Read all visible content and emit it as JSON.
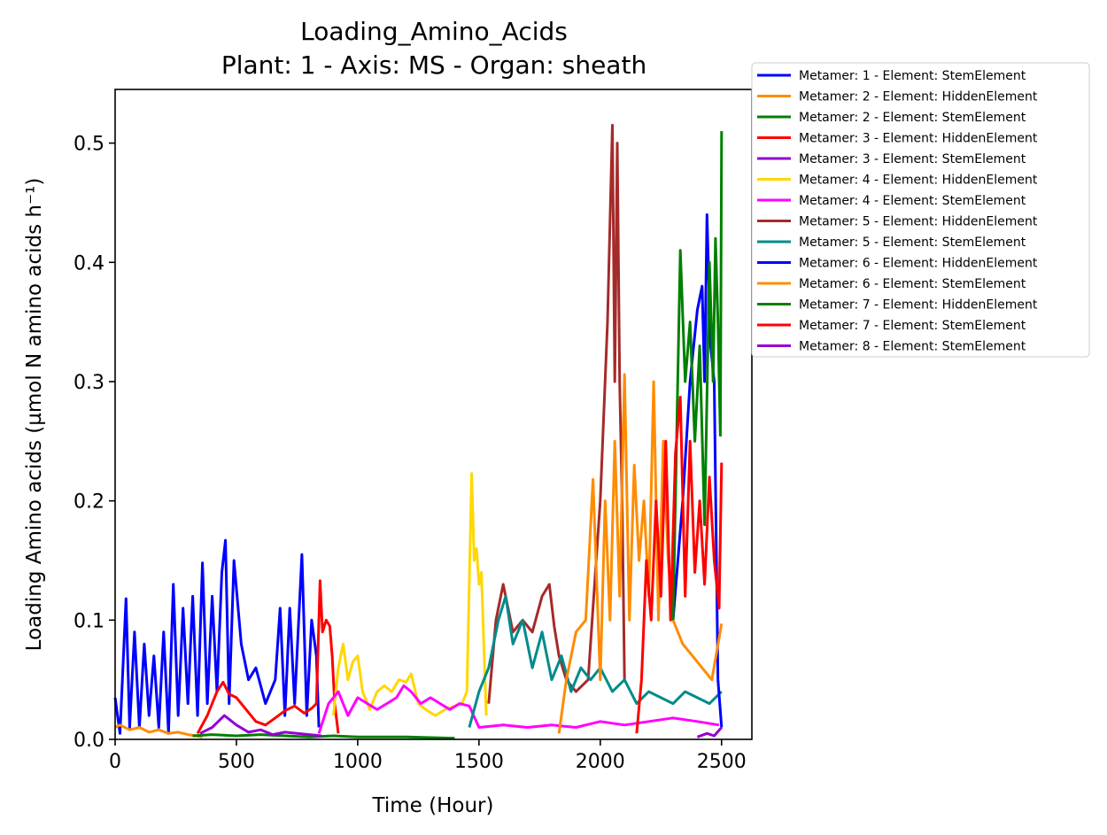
{
  "chart_data": {
    "type": "line",
    "title": "Loading_Amino_Acids",
    "subtitle": "Plant: 1 - Axis: MS - Organ: sheath",
    "xlabel": "Time (Hour)",
    "ylabel": "Loading Amino acids (µmol N amino acids h⁻¹)",
    "xlim": [
      0,
      2625
    ],
    "ylim": [
      0,
      0.545
    ],
    "xticks": [
      0,
      500,
      1000,
      1500,
      2000,
      2500
    ],
    "yticks": [
      0.0,
      0.1,
      0.2,
      0.3,
      0.4,
      0.5
    ],
    "xtick_labels": [
      "0",
      "500",
      "1000",
      "1500",
      "2000",
      "2500"
    ],
    "ytick_labels": [
      "0.0",
      "0.1",
      "0.2",
      "0.3",
      "0.4",
      "0.5"
    ],
    "grid": false,
    "legend_position": "outside-top-right",
    "series": [
      {
        "name": "Metamer: 1 - Element: StemElement",
        "color": "#0000ff",
        "x": [
          0,
          20,
          45,
          60,
          80,
          100,
          120,
          140,
          160,
          180,
          200,
          220,
          240,
          260,
          280,
          300,
          320,
          340,
          360,
          380,
          400,
          420,
          440,
          455,
          470,
          490,
          520,
          550,
          580,
          620,
          660,
          680,
          700,
          720,
          740,
          770,
          790,
          810,
          830,
          840
        ],
        "y": [
          0.035,
          0.005,
          0.118,
          0.01,
          0.09,
          0.01,
          0.08,
          0.02,
          0.07,
          0.01,
          0.09,
          0.005,
          0.13,
          0.02,
          0.11,
          0.03,
          0.12,
          0.02,
          0.148,
          0.03,
          0.12,
          0.04,
          0.14,
          0.167,
          0.03,
          0.15,
          0.08,
          0.05,
          0.06,
          0.03,
          0.05,
          0.11,
          0.02,
          0.11,
          0.03,
          0.155,
          0.02,
          0.1,
          0.07,
          0.01
        ]
      },
      {
        "name": "Metamer: 2 - Element: HiddenElement",
        "color": "#ff8c00",
        "x": [
          0,
          20,
          60,
          100,
          140,
          180,
          220,
          260,
          300,
          330,
          360
        ],
        "y": [
          0.01,
          0.012,
          0.008,
          0.01,
          0.006,
          0.008,
          0.005,
          0.006,
          0.004,
          0.003,
          0.002
        ]
      },
      {
        "name": "Metamer: 2 - Element: StemElement",
        "color": "#008000",
        "x": [
          320,
          400,
          500,
          600,
          700,
          800,
          900,
          1000,
          1200,
          1400
        ],
        "y": [
          0.003,
          0.004,
          0.003,
          0.004,
          0.003,
          0.002,
          0.003,
          0.002,
          0.002,
          0.001
        ]
      },
      {
        "name": "Metamer: 3 - Element: HiddenElement",
        "color": "#ff0000",
        "x": [
          340,
          380,
          420,
          445,
          470,
          500,
          540,
          580,
          620,
          660,
          700,
          740,
          780,
          810,
          830,
          845,
          855,
          870,
          885,
          895,
          905,
          920
        ],
        "y": [
          0.005,
          0.02,
          0.04,
          0.048,
          0.038,
          0.035,
          0.025,
          0.015,
          0.012,
          0.018,
          0.024,
          0.028,
          0.022,
          0.026,
          0.03,
          0.133,
          0.09,
          0.1,
          0.095,
          0.07,
          0.03,
          0.005
        ]
      },
      {
        "name": "Metamer: 3 - Element: StemElement",
        "color": "#9400d3",
        "x": [
          350,
          400,
          450,
          500,
          550,
          600,
          650,
          700,
          750,
          800,
          850
        ],
        "y": [
          0.005,
          0.01,
          0.02,
          0.012,
          0.006,
          0.008,
          0.004,
          0.006,
          0.005,
          0.004,
          0.003
        ]
      },
      {
        "name": "Metamer: 4 - Element: HiddenElement",
        "color": "#ffd700",
        "x": [
          900,
          920,
          940,
          960,
          980,
          1000,
          1020,
          1050,
          1080,
          1110,
          1140,
          1170,
          1200,
          1220,
          1250,
          1280,
          1320,
          1360,
          1400,
          1430,
          1450,
          1470,
          1480,
          1490,
          1500,
          1510,
          1520,
          1530
        ],
        "y": [
          0.02,
          0.06,
          0.08,
          0.05,
          0.065,
          0.07,
          0.04,
          0.025,
          0.04,
          0.045,
          0.04,
          0.05,
          0.048,
          0.055,
          0.03,
          0.025,
          0.02,
          0.025,
          0.028,
          0.03,
          0.04,
          0.223,
          0.15,
          0.16,
          0.13,
          0.14,
          0.08,
          0.02
        ]
      },
      {
        "name": "Metamer: 4 - Element: StemElement",
        "color": "#ff00ff",
        "x": [
          840,
          880,
          920,
          960,
          1000,
          1040,
          1080,
          1120,
          1160,
          1190,
          1220,
          1260,
          1300,
          1340,
          1380,
          1420,
          1460,
          1500,
          1600,
          1700,
          1800,
          1900,
          2000,
          2100,
          2200,
          2300,
          2400,
          2490
        ],
        "y": [
          0.005,
          0.03,
          0.04,
          0.02,
          0.035,
          0.03,
          0.025,
          0.03,
          0.035,
          0.045,
          0.04,
          0.03,
          0.035,
          0.03,
          0.025,
          0.03,
          0.028,
          0.01,
          0.012,
          0.01,
          0.012,
          0.01,
          0.015,
          0.012,
          0.015,
          0.018,
          0.015,
          0.012
        ]
      },
      {
        "name": "Metamer: 5 - Element: HiddenElement",
        "color": "#a52a2a",
        "x": [
          1540,
          1570,
          1600,
          1640,
          1680,
          1720,
          1760,
          1790,
          1810,
          1830,
          1860,
          1900,
          1950,
          2000,
          2030,
          2050,
          2060,
          2070,
          2080,
          2090,
          2100
        ],
        "y": [
          0.03,
          0.1,
          0.13,
          0.09,
          0.1,
          0.09,
          0.12,
          0.13,
          0.095,
          0.07,
          0.05,
          0.04,
          0.05,
          0.2,
          0.35,
          0.515,
          0.3,
          0.5,
          0.3,
          0.2,
          0.05
        ]
      },
      {
        "name": "Metamer: 5 - Element: StemElement",
        "color": "#008b8b",
        "x": [
          1460,
          1500,
          1540,
          1580,
          1610,
          1640,
          1680,
          1720,
          1760,
          1800,
          1840,
          1880,
          1920,
          1960,
          2000,
          2050,
          2100,
          2150,
          2200,
          2250,
          2300,
          2350,
          2400,
          2450,
          2500
        ],
        "y": [
          0.01,
          0.04,
          0.06,
          0.1,
          0.12,
          0.08,
          0.1,
          0.06,
          0.09,
          0.05,
          0.07,
          0.04,
          0.06,
          0.05,
          0.06,
          0.04,
          0.05,
          0.03,
          0.04,
          0.035,
          0.03,
          0.04,
          0.035,
          0.03,
          0.04
        ]
      },
      {
        "name": "Metamer: 6 - Element: HiddenElement",
        "color": "#0000ff",
        "x": [
          2300,
          2340,
          2370,
          2400,
          2420,
          2430,
          2440,
          2455,
          2470,
          2485,
          2500
        ],
        "y": [
          0.1,
          0.2,
          0.3,
          0.36,
          0.38,
          0.3,
          0.44,
          0.33,
          0.3,
          0.05,
          0.01
        ]
      },
      {
        "name": "Metamer: 6 - Element: StemElement",
        "color": "#ff8c00",
        "x": [
          1830,
          1860,
          1900,
          1940,
          1970,
          2000,
          2020,
          2040,
          2060,
          2080,
          2100,
          2120,
          2140,
          2160,
          2180,
          2200,
          2220,
          2240,
          2260,
          2280,
          2300,
          2340,
          2380,
          2420,
          2460,
          2500
        ],
        "y": [
          0.005,
          0.05,
          0.09,
          0.1,
          0.218,
          0.05,
          0.2,
          0.1,
          0.25,
          0.12,
          0.306,
          0.1,
          0.23,
          0.15,
          0.2,
          0.12,
          0.3,
          0.1,
          0.25,
          0.15,
          0.1,
          0.08,
          0.07,
          0.06,
          0.05,
          0.097
        ]
      },
      {
        "name": "Metamer: 7 - Element: HiddenElement",
        "color": "#008000",
        "x": [
          2300,
          2330,
          2350,
          2370,
          2390,
          2410,
          2430,
          2450,
          2465,
          2475,
          2485,
          2495,
          2500
        ],
        "y": [
          0.1,
          0.41,
          0.3,
          0.35,
          0.25,
          0.33,
          0.18,
          0.4,
          0.3,
          0.42,
          0.35,
          0.255,
          0.51
        ]
      },
      {
        "name": "Metamer: 7 - Element: StemElement",
        "color": "#ff0000",
        "x": [
          2150,
          2170,
          2190,
          2210,
          2230,
          2250,
          2270,
          2290,
          2310,
          2330,
          2350,
          2370,
          2390,
          2410,
          2430,
          2450,
          2470,
          2490,
          2500
        ],
        "y": [
          0.005,
          0.05,
          0.15,
          0.1,
          0.2,
          0.12,
          0.25,
          0.1,
          0.24,
          0.287,
          0.12,
          0.25,
          0.14,
          0.2,
          0.13,
          0.22,
          0.15,
          0.11,
          0.232
        ]
      },
      {
        "name": "Metamer: 8 - Element: StemElement",
        "color": "#9400d3",
        "x": [
          2400,
          2440,
          2470,
          2500
        ],
        "y": [
          0.002,
          0.005,
          0.003,
          0.01
        ]
      }
    ]
  }
}
